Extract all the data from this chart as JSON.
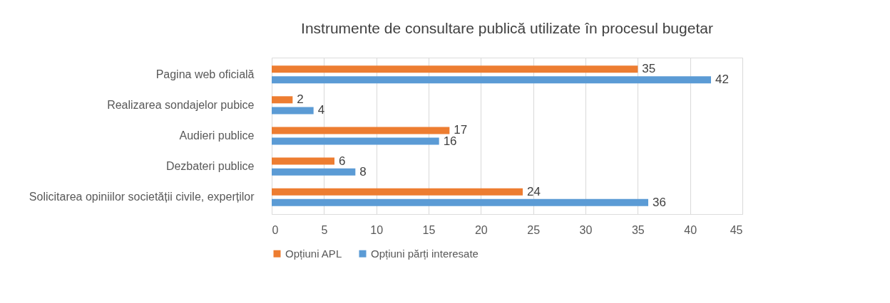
{
  "chart_data": {
    "type": "bar",
    "orientation": "horizontal",
    "title": "Instrumente de consultare publică utilizate în procesul bugetar",
    "categories": [
      "Pagina web oficială",
      "Realizarea sondajelor pubice",
      "Audieri publice",
      "Dezbateri publice",
      "Solicitarea opiniilor societății civile, experților"
    ],
    "series": [
      {
        "name": "Opțiuni APL",
        "color": "#ed7d31",
        "values": [
          35,
          2,
          17,
          6,
          24
        ]
      },
      {
        "name": "Opțiuni părți interesate",
        "color": "#5b9bd5",
        "values": [
          42,
          4,
          16,
          8,
          36
        ]
      }
    ],
    "xlim": [
      0,
      45
    ],
    "xticks": [
      0,
      5,
      10,
      15,
      20,
      25,
      30,
      35,
      40,
      45
    ],
    "grid": "x",
    "legend": "bottom",
    "data_labels": true
  }
}
